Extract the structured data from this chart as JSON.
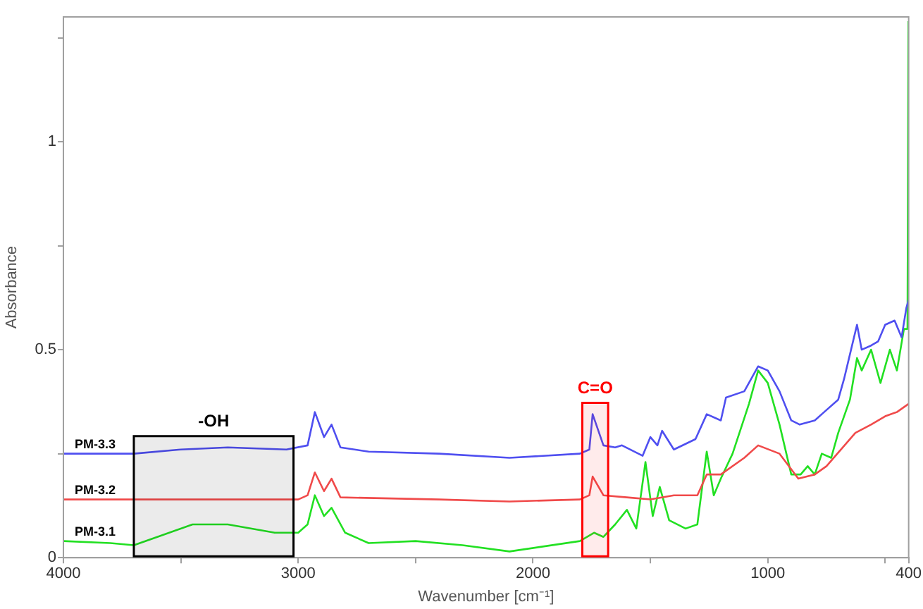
{
  "chart_data": {
    "type": "line",
    "xlabel": "Wavenumber [cm⁻¹]",
    "ylabel": "Absorbance",
    "xlim": [
      4000,
      400
    ],
    "xticks": [
      4000,
      {
        "value": 3500,
        "label": null
      },
      3000,
      {
        "value": 2500,
        "label": null
      },
      2000,
      {
        "value": 1500,
        "label": null
      },
      1000,
      {
        "value": 500,
        "label": null
      },
      400
    ],
    "ylim": [
      0,
      1.3
    ],
    "yticks": [
      0,
      {
        "value": 0.25,
        "label": null
      },
      0.5,
      {
        "value": 0.75,
        "label": null
      },
      1,
      {
        "value": 1.25,
        "label": null
      }
    ],
    "grid": false,
    "legend": false,
    "marker": "none",
    "line_style": "solid",
    "series": [
      {
        "name": "PM-3.3",
        "color": "#4f4ff0",
        "x": [
          4000,
          3700,
          3500,
          3300,
          3050,
          2960,
          2929,
          2890,
          2858,
          2820,
          2700,
          2400,
          2100,
          1800,
          1760,
          1746,
          1700,
          1650,
          1621,
          1533,
          1500,
          1470,
          1450,
          1400,
          1308,
          1260,
          1200,
          1178,
          1100,
          1041,
          1000,
          950,
          900,
          864,
          800,
          760,
          700,
          675,
          620,
          600,
          560,
          530,
          500,
          460,
          430,
          410,
          400
        ],
        "values": [
          0.25,
          0.25,
          0.26,
          0.265,
          0.26,
          0.27,
          0.35,
          0.29,
          0.32,
          0.265,
          0.255,
          0.25,
          0.24,
          0.25,
          0.26,
          0.345,
          0.27,
          0.265,
          0.27,
          0.245,
          0.29,
          0.27,
          0.305,
          0.26,
          0.285,
          0.345,
          0.33,
          0.385,
          0.4,
          0.46,
          0.45,
          0.4,
          0.33,
          0.32,
          0.33,
          0.35,
          0.38,
          0.43,
          0.56,
          0.5,
          0.51,
          0.52,
          0.56,
          0.57,
          0.53,
          0.6,
          0.62
        ]
      },
      {
        "name": "PM-3.2",
        "color": "#f04a4a",
        "x": [
          4000,
          3500,
          3000,
          2960,
          2929,
          2890,
          2858,
          2820,
          2400,
          2100,
          1800,
          1760,
          1746,
          1700,
          1600,
          1500,
          1400,
          1300,
          1260,
          1200,
          1100,
          1041,
          950,
          870,
          800,
          750,
          627,
          560,
          500,
          450,
          400
        ],
        "values": [
          0.14,
          0.14,
          0.14,
          0.15,
          0.205,
          0.16,
          0.19,
          0.145,
          0.14,
          0.135,
          0.14,
          0.15,
          0.195,
          0.15,
          0.145,
          0.14,
          0.15,
          0.15,
          0.2,
          0.2,
          0.24,
          0.27,
          0.25,
          0.19,
          0.2,
          0.22,
          0.3,
          0.32,
          0.34,
          0.35,
          0.37
        ]
      },
      {
        "name": "PM-3.1",
        "color": "#22e022",
        "x": [
          4000,
          3800,
          3700,
          3600,
          3450,
          3300,
          3100,
          3000,
          2960,
          2929,
          2890,
          2858,
          2800,
          2700,
          2500,
          2300,
          2100,
          1800,
          1740,
          1700,
          1650,
          1600,
          1560,
          1521,
          1490,
          1460,
          1420,
          1350,
          1300,
          1260,
          1230,
          1200,
          1150,
          1080,
          1041,
          1000,
          950,
          900,
          860,
          830,
          800,
          770,
          730,
          700,
          650,
          620,
          600,
          560,
          520,
          480,
          450,
          420,
          405,
          401
        ],
        "values": [
          0.04,
          0.035,
          0.03,
          0.05,
          0.08,
          0.08,
          0.06,
          0.06,
          0.08,
          0.15,
          0.1,
          0.12,
          0.06,
          0.035,
          0.04,
          0.03,
          0.015,
          0.04,
          0.06,
          0.05,
          0.08,
          0.115,
          0.07,
          0.23,
          0.1,
          0.17,
          0.09,
          0.07,
          0.08,
          0.255,
          0.15,
          0.19,
          0.25,
          0.37,
          0.45,
          0.42,
          0.32,
          0.2,
          0.2,
          0.22,
          0.2,
          0.25,
          0.24,
          0.3,
          0.38,
          0.48,
          0.45,
          0.5,
          0.42,
          0.5,
          0.45,
          0.55,
          0.55,
          1.29
        ]
      }
    ],
    "bands": [
      {
        "axis": "x",
        "from": 3700,
        "to": 3020,
        "label": "-OH",
        "color": "#000000"
      },
      {
        "axis": "x",
        "from": 1790,
        "to": 1680,
        "label": "C=O",
        "color": "#ff0000"
      }
    ]
  }
}
